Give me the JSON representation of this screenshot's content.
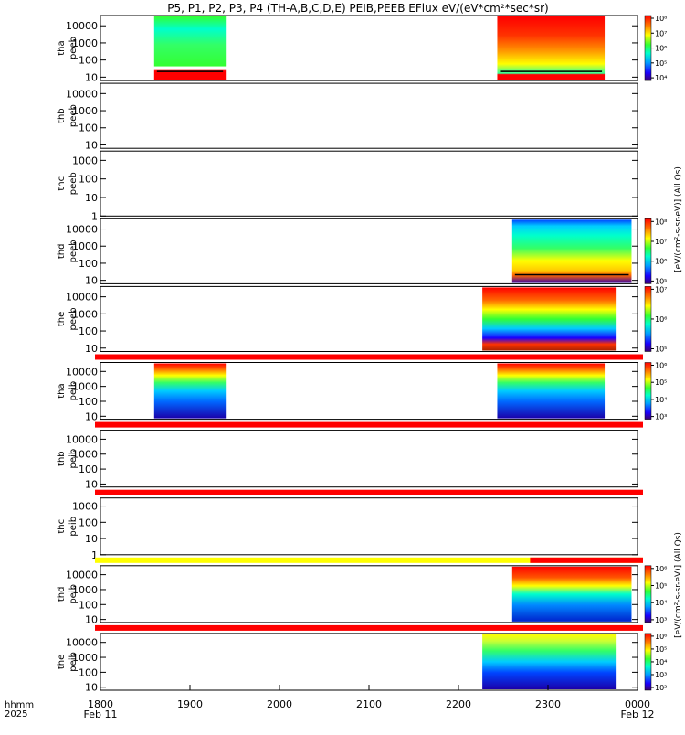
{
  "title": "P5, P1, P2, P3, P4 (TH-A,B,C,D,E) PEIB,PEEB EFlux eV/(eV*cm²*sec*sr)",
  "colors": {
    "axis": "#000000",
    "red_band": "#ff0000",
    "yellow_band": "#ffff00"
  },
  "x_axis": {
    "corner_labels": [
      "hhmm",
      "2025"
    ],
    "ticks": [
      {
        "label": "1800",
        "sub": "Feb 11",
        "t": 0
      },
      {
        "label": "1900",
        "sub": "",
        "t": 60
      },
      {
        "label": "2000",
        "sub": "",
        "t": 120
      },
      {
        "label": "2100",
        "sub": "",
        "t": 180
      },
      {
        "label": "2200",
        "sub": "",
        "t": 240
      },
      {
        "label": "2300",
        "sub": "",
        "t": 300
      },
      {
        "label": "0000",
        "sub": "Feb 12",
        "t": 360
      }
    ],
    "range_minutes": [
      0,
      360
    ]
  },
  "colorbar_labels": {
    "eesa": "[eV/(cm²-s-sr-eV)] (All Qs)",
    "iesa": "[eV/(cm²-s-sr-eV)] (All Qs)"
  },
  "chart_data": {
    "type": "heatmap",
    "x_units": "minutes since 1800 UT Feb 11 2025",
    "panels": [
      {
        "id": "tha-peeb",
        "label": [
          "tha",
          "peeb"
        ],
        "yticks": [
          "10",
          "100",
          "1000",
          "10000"
        ],
        "ymin_exp": 0.8,
        "ymax_exp": 4.6,
        "cbar": [
          "10⁴",
          "10⁵",
          "10⁶",
          "10⁷",
          "10⁸"
        ],
        "cbar_exp": [
          4,
          8
        ],
        "top_band": null,
        "segments": [
          {
            "t0": 36,
            "t1": 84,
            "scheme": "eesa_a"
          },
          {
            "t0": 266,
            "t1": 338,
            "scheme": "eesa_b"
          }
        ]
      },
      {
        "id": "thb-peeb",
        "label": [
          "thb",
          "peeb"
        ],
        "yticks": [
          "10",
          "100",
          "1000",
          "10000"
        ],
        "ymin_exp": 0.8,
        "ymax_exp": 4.6,
        "cbar": [],
        "top_band": null,
        "segments": []
      },
      {
        "id": "thc-peeb",
        "label": [
          "thc",
          "peeb"
        ],
        "yticks": [
          "1",
          "10",
          "100",
          "1000"
        ],
        "ymin_exp": 0,
        "ymax_exp": 3.5,
        "cbar": [],
        "top_band": null,
        "segments": []
      },
      {
        "id": "thd-peeb",
        "label": [
          "thd",
          "peeb"
        ],
        "yticks": [
          "10",
          "100",
          "1000",
          "10000"
        ],
        "ymin_exp": 0.8,
        "ymax_exp": 4.6,
        "cbar": [
          "10⁵",
          "10⁶",
          "10⁷",
          "10⁸"
        ],
        "cbar_exp": [
          5,
          8
        ],
        "top_band": null,
        "segments": [
          {
            "t0": 276,
            "t1": 356,
            "scheme": "eesa_d"
          }
        ]
      },
      {
        "id": "the-peeb",
        "label": [
          "the",
          "peeb"
        ],
        "yticks": [
          "10",
          "100",
          "1000",
          "10000"
        ],
        "ymin_exp": 0.8,
        "ymax_exp": 4.6,
        "cbar": [
          "10⁵",
          "10⁶",
          "10⁷"
        ],
        "cbar_exp": [
          4.5,
          7.5
        ],
        "top_band": null,
        "segments": [
          {
            "t0": 256,
            "t1": 346,
            "scheme": "eesa_e"
          }
        ]
      },
      {
        "id": "tha-peib",
        "label": [
          "tha",
          "peib"
        ],
        "yticks": [
          "10",
          "100",
          "1000",
          "10000"
        ],
        "ymin_exp": 0.8,
        "ymax_exp": 4.6,
        "cbar": [
          "10³",
          "10⁴",
          "10⁵",
          "10⁶"
        ],
        "cbar_exp": [
          3,
          6
        ],
        "top_band": "red",
        "segments": [
          {
            "t0": 36,
            "t1": 84,
            "scheme": "iesa"
          },
          {
            "t0": 266,
            "t1": 338,
            "scheme": "iesa"
          }
        ]
      },
      {
        "id": "thb-peib",
        "label": [
          "thb",
          "peib"
        ],
        "yticks": [
          "10",
          "100",
          "1000",
          "10000"
        ],
        "ymin_exp": 0.8,
        "ymax_exp": 4.6,
        "cbar": [],
        "top_band": "red",
        "segments": []
      },
      {
        "id": "thc-peib",
        "label": [
          "thc",
          "peib"
        ],
        "yticks": [
          "1",
          "10",
          "100",
          "1000"
        ],
        "ymin_exp": 0,
        "ymax_exp": 3.5,
        "cbar": [],
        "top_band": "red",
        "segments": []
      },
      {
        "id": "thd-peib",
        "label": [
          "thd",
          "peib"
        ],
        "yticks": [
          "10",
          "100",
          "1000",
          "10000"
        ],
        "ymin_exp": 0.8,
        "ymax_exp": 4.6,
        "cbar": [
          "10³",
          "10⁴",
          "10⁵",
          "10⁶"
        ],
        "cbar_exp": [
          3,
          6
        ],
        "top_band": "yellow",
        "segments": [
          {
            "t0": 276,
            "t1": 356,
            "scheme": "iesa_hot"
          }
        ]
      },
      {
        "id": "the-peib",
        "label": [
          "the",
          "peib"
        ],
        "yticks": [
          "10",
          "100",
          "1000",
          "10000"
        ],
        "ymin_exp": 0.8,
        "ymax_exp": 4.6,
        "cbar": [
          "10²",
          "10³",
          "10⁴",
          "10⁵",
          "10⁶"
        ],
        "cbar_exp": [
          2,
          6
        ],
        "top_band": "red",
        "segments": [
          {
            "t0": 256,
            "t1": 346,
            "scheme": "iesa_cool"
          }
        ]
      }
    ]
  }
}
